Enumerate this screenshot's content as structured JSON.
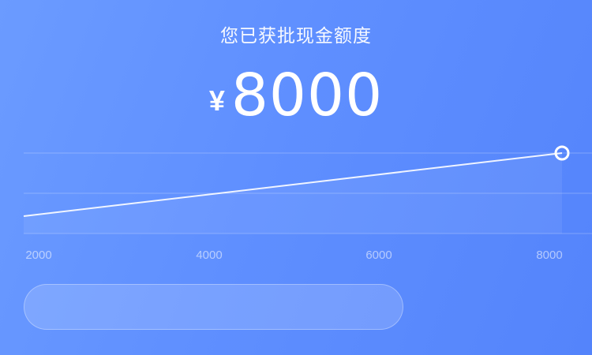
{
  "header": {
    "title": "您已获批现金额度",
    "currency_symbol": "¥",
    "amount": "8000"
  },
  "chart_data": {
    "type": "line",
    "x": [
      2000,
      8000
    ],
    "y": [
      2000,
      8000
    ],
    "x_ticks": [
      "2000",
      "4000",
      "6000",
      "8000"
    ],
    "x_range": [
      2000,
      8000
    ],
    "y_range": [
      0,
      8000
    ],
    "grid": true,
    "highlight_point": {
      "x": 8000,
      "y": 8000
    },
    "colors": {
      "line": "#ffffff",
      "grid": "rgba(255,255,255,0.25)",
      "area": "rgba(255,255,255,0.07)"
    }
  }
}
